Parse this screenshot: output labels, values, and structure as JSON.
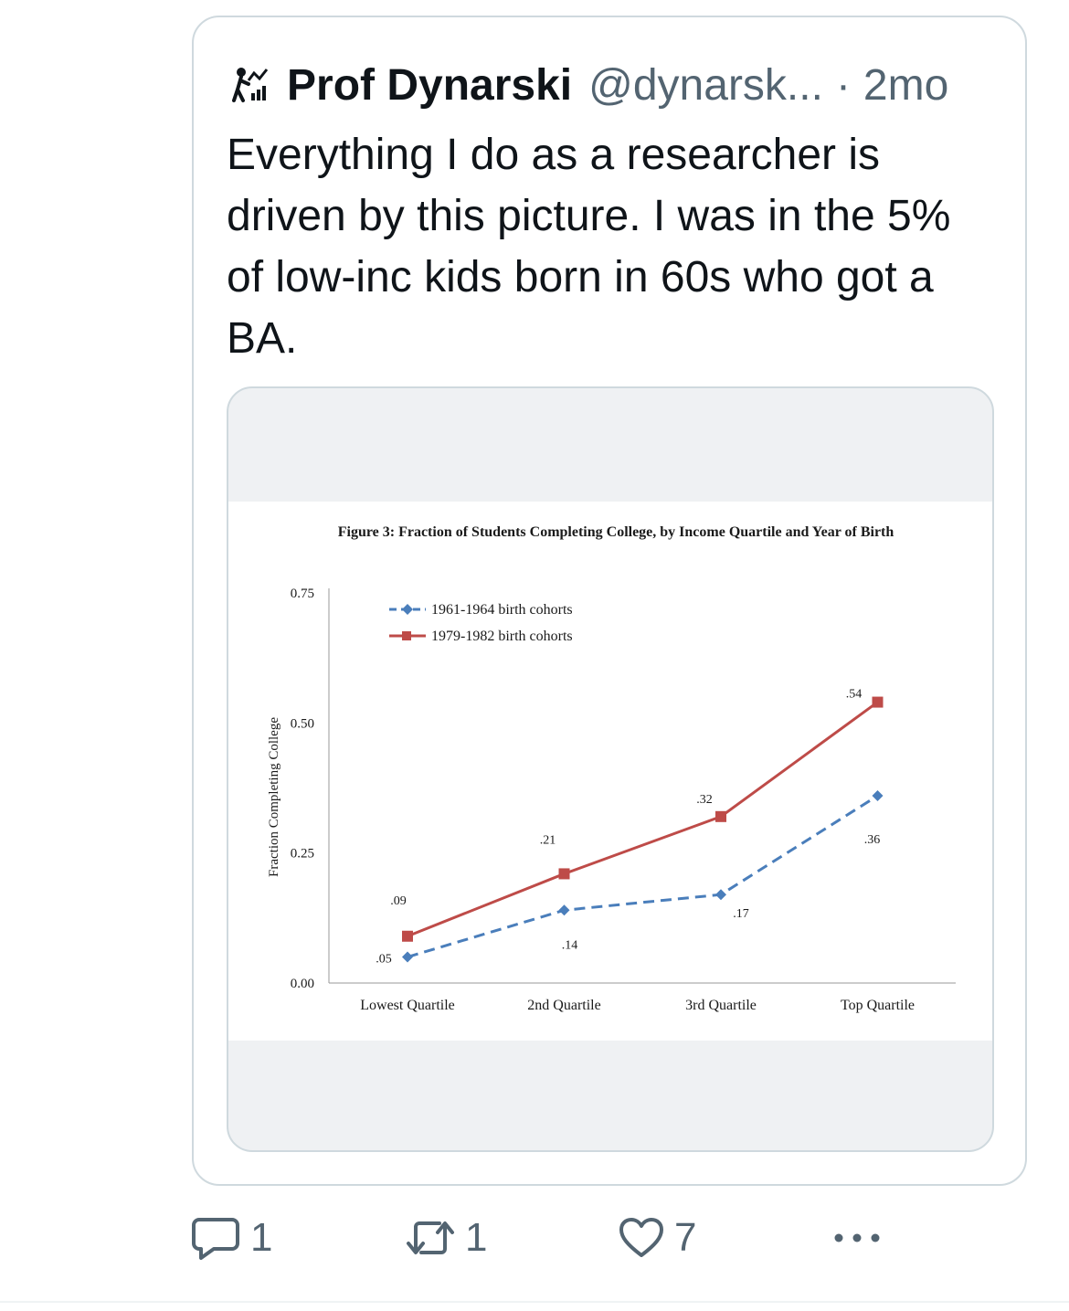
{
  "quoted_tweet": {
    "author_name": "Prof Dynarski",
    "handle": "@dynarsk...",
    "separator": "·",
    "time": "2mo",
    "avatar_icon": "chart-person-icon",
    "text": "Everything I do as a researcher is driven by this picture. I was in the 5% of low-inc kids born in 60s who got a BA."
  },
  "chart_data": {
    "type": "line",
    "title": "Figure 3: Fraction of Students Completing College, by Income Quartile and Year of Birth",
    "xlabel": "",
    "ylabel": "Fraction Completing College",
    "categories": [
      "Lowest Quartile",
      "2nd Quartile",
      "3rd Quartile",
      "Top Quartile"
    ],
    "ylim": [
      0,
      0.75
    ],
    "yticks": [
      "0.00",
      "0.25",
      "0.50",
      "0.75"
    ],
    "grid": false,
    "legend_position": "top-left",
    "series": [
      {
        "name": "1961-1964 birth cohorts",
        "values": [
          0.05,
          0.14,
          0.17,
          0.36
        ],
        "labels": [
          ".05",
          ".14",
          ".17",
          ".36"
        ],
        "color": "#4a7ebb",
        "style": "dashed",
        "marker": "diamond"
      },
      {
        "name": "1979-1982 birth cohorts",
        "values": [
          0.09,
          0.21,
          0.32,
          0.54
        ],
        "labels": [
          ".09",
          ".21",
          ".32",
          ".54"
        ],
        "color": "#be4b48",
        "style": "solid",
        "marker": "square"
      }
    ]
  },
  "actions": {
    "reply_count": "1",
    "retweet_count": "1",
    "like_count": "7",
    "more_icon": "more-icon"
  },
  "colors": {
    "text_primary": "#0f1419",
    "text_secondary": "#536471",
    "border": "#cfd9de"
  }
}
